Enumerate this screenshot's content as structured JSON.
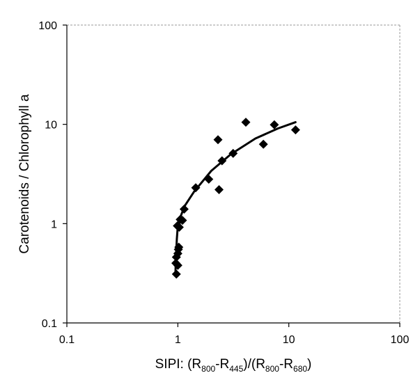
{
  "chart_data": {
    "type": "scatter",
    "title": "",
    "xlabel": {
      "prefix": "SIPI: (R",
      "s1": "800",
      "m1": "-R",
      "s2": "445",
      "m2": ")/(R",
      "s3": "800",
      "m3": "-R",
      "s4": "680",
      "suffix": ")"
    },
    "ylabel": "Carotenoids / Chlorophyll a",
    "xscale": "log",
    "yscale": "log",
    "xlim": [
      0.1,
      100
    ],
    "ylim": [
      0.1,
      100
    ],
    "x_ticks": [
      {
        "value": 0.1,
        "label": "0.1"
      },
      {
        "value": 1,
        "label": "1"
      },
      {
        "value": 10,
        "label": "10"
      },
      {
        "value": 100,
        "label": "100"
      }
    ],
    "y_ticks": [
      {
        "value": 0.1,
        "label": "0.1"
      },
      {
        "value": 1,
        "label": "1"
      },
      {
        "value": 10,
        "label": "10"
      },
      {
        "value": 100,
        "label": "100"
      }
    ],
    "grid": false,
    "legend": "none",
    "marker": "diamond",
    "marker_color": "#000000",
    "points": [
      {
        "x": 0.97,
        "y": 0.31
      },
      {
        "x": 0.96,
        "y": 0.4
      },
      {
        "x": 1.0,
        "y": 0.38
      },
      {
        "x": 0.97,
        "y": 0.46
      },
      {
        "x": 1.0,
        "y": 0.5
      },
      {
        "x": 1.01,
        "y": 0.55
      },
      {
        "x": 1.02,
        "y": 0.58
      },
      {
        "x": 0.99,
        "y": 0.95
      },
      {
        "x": 1.03,
        "y": 0.92
      },
      {
        "x": 1.05,
        "y": 1.1
      },
      {
        "x": 1.1,
        "y": 1.08
      },
      {
        "x": 1.14,
        "y": 1.4
      },
      {
        "x": 1.45,
        "y": 2.3
      },
      {
        "x": 1.9,
        "y": 2.8
      },
      {
        "x": 2.35,
        "y": 2.2
      },
      {
        "x": 2.3,
        "y": 7.0
      },
      {
        "x": 2.5,
        "y": 4.3
      },
      {
        "x": 3.15,
        "y": 5.1
      },
      {
        "x": 4.1,
        "y": 10.5
      },
      {
        "x": 5.9,
        "y": 6.3
      },
      {
        "x": 7.4,
        "y": 9.9
      },
      {
        "x": 11.5,
        "y": 8.8
      }
    ],
    "trendline": [
      {
        "x": 0.95,
        "y": 0.3
      },
      {
        "x": 0.96,
        "y": 0.45
      },
      {
        "x": 0.98,
        "y": 0.7
      },
      {
        "x": 1.0,
        "y": 0.95
      },
      {
        "x": 1.05,
        "y": 1.15
      },
      {
        "x": 1.15,
        "y": 1.5
      },
      {
        "x": 1.4,
        "y": 2.1
      },
      {
        "x": 2.0,
        "y": 3.4
      },
      {
        "x": 3.0,
        "y": 5.0
      },
      {
        "x": 5.0,
        "y": 7.2
      },
      {
        "x": 8.0,
        "y": 9.1
      },
      {
        "x": 11.5,
        "y": 10.5
      }
    ]
  }
}
